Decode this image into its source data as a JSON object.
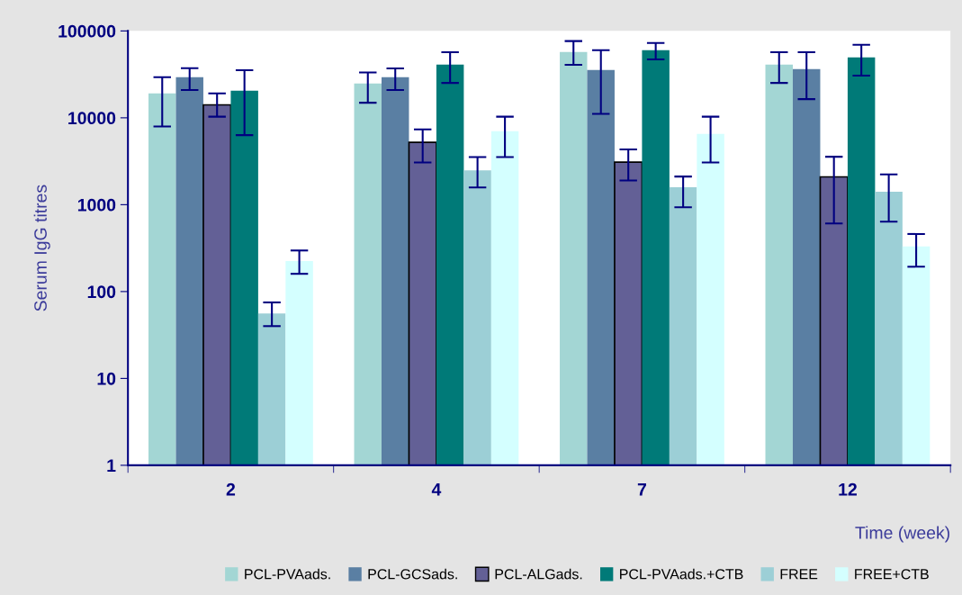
{
  "chart_data": {
    "type": "bar",
    "xlabel": "Time (week)",
    "ylabel": "Serum IgG titres",
    "categories": [
      "2",
      "4",
      "7",
      "12"
    ],
    "log": "y",
    "ylim": [
      1,
      100000
    ],
    "yticks": [
      1,
      10,
      100,
      1000,
      10000,
      100000
    ],
    "grid": false,
    "legend": "bottom",
    "series": [
      {
        "name": "PCL-PVAads.",
        "color": "#a3d6d4",
        "values": [
          19100,
          24800,
          57300,
          41000
        ],
        "errors": [
          [
            7950,
            29300
          ],
          [
            14900,
            33300
          ],
          [
            40700,
            76400
          ],
          [
            25200,
            56900
          ]
        ]
      },
      {
        "name": "PCL-GCSads.",
        "color": "#5a7fa3",
        "values": [
          29300,
          29300,
          35600,
          36400
        ],
        "errors": [
          [
            20900,
            37300
          ],
          [
            20900,
            37000
          ],
          [
            11100,
            60100
          ],
          [
            16400,
            56900
          ]
        ]
      },
      {
        "name": "PCL-ALGads.",
        "color": "#636096",
        "values": [
          14100,
          5220,
          3090,
          2090
        ],
        "errors": [
          [
            10300,
            19100
          ],
          [
            3060,
            7350
          ],
          [
            1900,
            4320
          ],
          [
            608,
            3560
          ]
        ]
      },
      {
        "name": "PCL-PVAads.+CTB",
        "color": "#007a78",
        "values": [
          20500,
          41000,
          60100,
          49700
        ],
        "errors": [
          [
            6320,
            35300
          ],
          [
            25200,
            56900
          ],
          [
            47000,
            72800
          ],
          [
            30600,
            69300
          ]
        ]
      },
      {
        "name": "FREE",
        "color": "#9ccfd6",
        "values": [
          56,
          2490,
          1590,
          1410
        ],
        "errors": [
          [
            40,
            75
          ],
          [
            1580,
            3530
          ],
          [
            935,
            2110
          ],
          [
            638,
            2230
          ]
        ]
      },
      {
        "name": "FREE+CTB",
        "color": "#d4ffff",
        "values": [
          225,
          7000,
          6520,
          330
        ],
        "errors": [
          [
            160,
            297
          ],
          [
            3530,
            10300
          ],
          [
            3060,
            10300
          ],
          [
            193,
            460
          ]
        ]
      }
    ]
  }
}
